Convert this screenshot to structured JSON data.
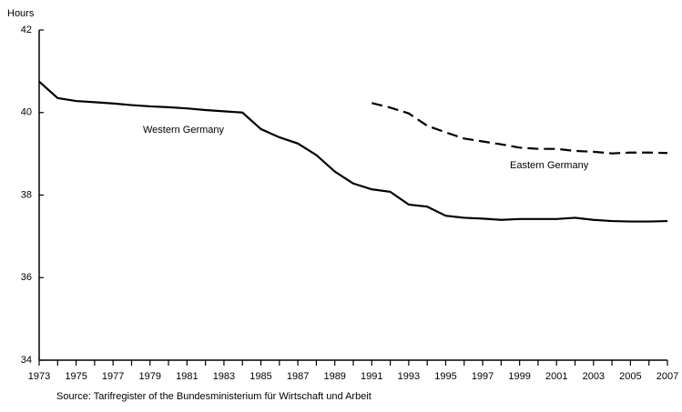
{
  "chart_data": {
    "type": "line",
    "y_label": "Hours",
    "source": "Source: Tarifregister of the Bundesministerium für Wirtschaft und Arbeit",
    "x": [
      1973,
      1974,
      1975,
      1976,
      1977,
      1978,
      1979,
      1980,
      1981,
      1982,
      1983,
      1984,
      1985,
      1986,
      1987,
      1988,
      1989,
      1990,
      1991,
      1992,
      1993,
      1994,
      1995,
      1996,
      1997,
      1998,
      1999,
      2000,
      2001,
      2002,
      2003,
      2004,
      2005,
      2006,
      2007
    ],
    "series": [
      {
        "name": "Western Germany",
        "color": "#000000",
        "dash": "solid",
        "values": [
          40.75,
          40.35,
          40.28,
          40.25,
          40.22,
          40.18,
          40.15,
          40.13,
          40.1,
          40.06,
          40.03,
          40.0,
          39.6,
          39.4,
          39.25,
          38.97,
          38.57,
          38.28,
          38.14,
          38.08,
          37.77,
          37.72,
          37.5,
          37.45,
          37.43,
          37.4,
          37.42,
          37.42,
          37.42,
          37.45,
          37.4,
          37.37,
          37.36,
          37.36,
          37.37
        ]
      },
      {
        "name": "Eastern Germany",
        "color": "#000000",
        "dash": "dashed",
        "values": [
          null,
          null,
          null,
          null,
          null,
          null,
          null,
          null,
          null,
          null,
          null,
          null,
          null,
          null,
          null,
          null,
          null,
          null,
          40.23,
          40.12,
          39.98,
          39.68,
          39.52,
          39.37,
          39.3,
          39.23,
          39.15,
          39.12,
          39.12,
          39.07,
          39.05,
          39.01,
          39.03,
          39.03,
          39.02
        ]
      }
    ],
    "xlim": [
      1973,
      2007
    ],
    "xticks": [
      1973,
      1975,
      1977,
      1979,
      1981,
      1983,
      1985,
      1987,
      1989,
      1991,
      1993,
      1995,
      1997,
      1999,
      2001,
      2003,
      2005,
      2007
    ],
    "ylim": [
      34,
      42
    ],
    "yticks": [
      34,
      36,
      38,
      40,
      42
    ],
    "grid": false
  }
}
